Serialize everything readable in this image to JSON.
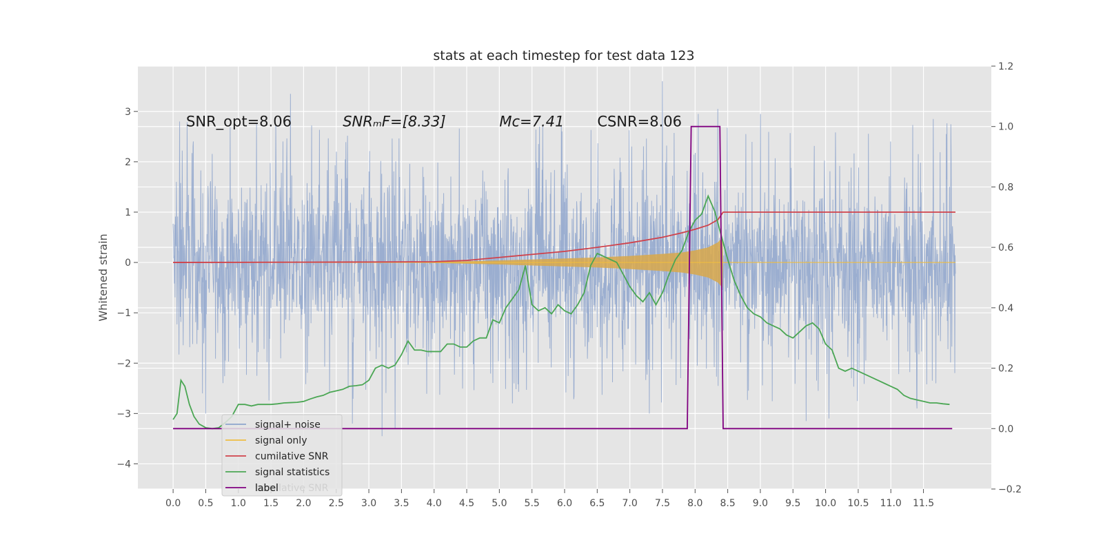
{
  "chart_data": {
    "type": "line",
    "title": "stats at each timestep for test data 123",
    "ylabel": "Whitened strain",
    "xlabel": "",
    "xlim": [
      -0.54,
      12.54
    ],
    "ylim": [
      -4.5,
      3.9
    ],
    "ylim_right": [
      -0.2,
      1.2
    ],
    "x_ticks": [
      0.0,
      0.5,
      1.0,
      1.5,
      2.0,
      2.5,
      3.0,
      3.5,
      4.0,
      4.5,
      5.0,
      5.5,
      6.0,
      6.5,
      7.0,
      7.5,
      8.0,
      8.5,
      9.0,
      9.5,
      10.0,
      10.5,
      11.0,
      11.5
    ],
    "x_tick_labels": [
      "0.0",
      "0.5",
      "1.0",
      "1.5",
      "2.0",
      "2.5",
      "3.0",
      "3.5",
      "4.0",
      "4.5",
      "5.0",
      "5.5",
      "6.0",
      "6.5",
      "7.0",
      "7.5",
      "8.0",
      "8.5",
      "9.0",
      "9.5",
      "10.0",
      "10.5",
      "11.0",
      "11.5"
    ],
    "y_ticks": [
      3,
      2,
      1,
      0,
      -1,
      -2,
      -3,
      -4
    ],
    "y_tick_labels": [
      "3",
      "2",
      "1",
      "0",
      "−1",
      "−2",
      "−3",
      "−4"
    ],
    "y_ticks_right": [
      1.2,
      1.0,
      0.8,
      0.6,
      0.4,
      0.2,
      0.0,
      -0.2
    ],
    "y_tick_labels_right": [
      "1.2",
      "1.0",
      "0.8",
      "0.6",
      "0.4",
      "0.2",
      "0.0",
      "−0.2"
    ],
    "grid": true,
    "legend_position": "lower-left",
    "annotations": [
      {
        "text": "SNR_opt=8.06",
        "x": 0.2,
        "y": 2.8
      },
      {
        "text": "SNRₘF=[8.33]",
        "x": 2.6,
        "y": 2.8
      },
      {
        "text": "Mᴄ=7.41",
        "x": 5.0,
        "y": 2.8
      },
      {
        "text": "CSNR=8.06",
        "x": 6.5,
        "y": 2.8
      }
    ],
    "noise": {
      "x_start": 0.0,
      "x_end": 11.99,
      "base_amplitude": 1.45,
      "spikes": [
        {
          "x": 0.05,
          "y": 1.6
        },
        {
          "x": 0.1,
          "y": 2.8
        },
        {
          "x": 0.45,
          "y": -2.6
        },
        {
          "x": 0.5,
          "y": -3.0
        },
        {
          "x": 1.8,
          "y": 3.35
        },
        {
          "x": 2.75,
          "y": -3.2
        },
        {
          "x": 3.2,
          "y": -3.45
        },
        {
          "x": 3.4,
          "y": -3.3
        },
        {
          "x": 6.0,
          "y": 1.2
        },
        {
          "x": 7.5,
          "y": 3.6
        },
        {
          "x": 7.3,
          "y": -3.0
        },
        {
          "x": 8.05,
          "y": 2.95
        },
        {
          "x": 8.35,
          "y": 3.05
        },
        {
          "x": 9.0,
          "y": 2.95
        },
        {
          "x": 9.7,
          "y": -3.15
        },
        {
          "x": 10.05,
          "y": -3.1
        },
        {
          "x": 11.65,
          "y": 2.85
        },
        {
          "x": 11.4,
          "y": -2.9
        }
      ]
    },
    "signal_envelope": {
      "x": [
        0.0,
        3.0,
        4.0,
        5.0,
        5.5,
        6.0,
        6.5,
        7.0,
        7.5,
        7.8,
        8.0,
        8.2,
        8.35,
        8.42,
        8.43,
        11.99
      ],
      "amp": [
        0.0,
        0.0,
        0.01,
        0.04,
        0.06,
        0.08,
        0.1,
        0.13,
        0.17,
        0.2,
        0.24,
        0.3,
        0.4,
        0.5,
        0.0,
        0.0
      ]
    },
    "series": [
      {
        "name": "signal+ noise",
        "color": "#8ea5cc",
        "axis": "left",
        "style": "noise"
      },
      {
        "name": "signal only",
        "color": "#eebc40",
        "axis": "left",
        "style": "envelope"
      },
      {
        "name": "cumilative SNR",
        "color": "#d0414a",
        "axis": "left",
        "x": [
          0.0,
          1.0,
          2.0,
          3.0,
          4.0,
          4.5,
          5.0,
          5.5,
          6.0,
          6.5,
          7.0,
          7.5,
          7.8,
          8.0,
          8.2,
          8.35,
          8.43,
          8.5,
          11.99
        ],
        "y": [
          0.0,
          0.003,
          0.006,
          0.01,
          0.015,
          0.04,
          0.1,
          0.16,
          0.22,
          0.3,
          0.39,
          0.5,
          0.59,
          0.66,
          0.74,
          0.85,
          1.0,
          1.0,
          1.0
        ]
      },
      {
        "name": "signal statistics",
        "color": "#4aa653",
        "axis": "right",
        "x": [
          0.0,
          0.06,
          0.12,
          0.18,
          0.25,
          0.32,
          0.4,
          0.5,
          0.6,
          0.7,
          0.8,
          0.9,
          1.0,
          1.1,
          1.2,
          1.3,
          1.4,
          1.5,
          1.6,
          1.7,
          1.8,
          1.9,
          2.0,
          2.1,
          2.2,
          2.3,
          2.4,
          2.5,
          2.6,
          2.7,
          2.8,
          2.9,
          3.0,
          3.1,
          3.2,
          3.3,
          3.4,
          3.5,
          3.6,
          3.7,
          3.8,
          3.9,
          4.0,
          4.1,
          4.2,
          4.3,
          4.4,
          4.5,
          4.6,
          4.7,
          4.8,
          4.9,
          5.0,
          5.1,
          5.2,
          5.3,
          5.4,
          5.5,
          5.6,
          5.7,
          5.8,
          5.9,
          6.0,
          6.1,
          6.2,
          6.3,
          6.4,
          6.5,
          6.6,
          6.7,
          6.8,
          6.9,
          7.0,
          7.1,
          7.2,
          7.3,
          7.4,
          7.5,
          7.6,
          7.7,
          7.8,
          7.9,
          8.0,
          8.1,
          8.15,
          8.2,
          8.3,
          8.4,
          8.5,
          8.6,
          8.7,
          8.8,
          8.9,
          9.0,
          9.1,
          9.2,
          9.3,
          9.4,
          9.5,
          9.6,
          9.7,
          9.8,
          9.9,
          10.0,
          10.1,
          10.2,
          10.3,
          10.4,
          10.5,
          10.6,
          10.7,
          10.8,
          10.9,
          11.0,
          11.1,
          11.2,
          11.3,
          11.4,
          11.5,
          11.6,
          11.7,
          11.8,
          11.9
        ],
        "y": [
          0.03,
          0.05,
          0.16,
          0.14,
          0.08,
          0.04,
          0.015,
          0.003,
          0.0,
          0.003,
          0.02,
          0.04,
          0.08,
          0.08,
          0.075,
          0.08,
          0.08,
          0.08,
          0.082,
          0.085,
          0.086,
          0.087,
          0.09,
          0.098,
          0.105,
          0.11,
          0.12,
          0.125,
          0.13,
          0.14,
          0.142,
          0.145,
          0.16,
          0.2,
          0.21,
          0.2,
          0.21,
          0.245,
          0.29,
          0.26,
          0.26,
          0.255,
          0.255,
          0.255,
          0.28,
          0.28,
          0.27,
          0.27,
          0.29,
          0.3,
          0.3,
          0.36,
          0.35,
          0.4,
          0.43,
          0.46,
          0.54,
          0.41,
          0.39,
          0.4,
          0.38,
          0.41,
          0.39,
          0.38,
          0.41,
          0.45,
          0.54,
          0.58,
          0.57,
          0.56,
          0.55,
          0.51,
          0.47,
          0.44,
          0.42,
          0.45,
          0.41,
          0.45,
          0.51,
          0.56,
          0.59,
          0.65,
          0.69,
          0.71,
          0.74,
          0.77,
          0.72,
          0.64,
          0.56,
          0.49,
          0.44,
          0.4,
          0.38,
          0.37,
          0.35,
          0.34,
          0.33,
          0.31,
          0.3,
          0.32,
          0.34,
          0.35,
          0.33,
          0.28,
          0.26,
          0.2,
          0.19,
          0.2,
          0.19,
          0.18,
          0.17,
          0.16,
          0.15,
          0.14,
          0.13,
          0.11,
          0.1,
          0.095,
          0.09,
          0.085,
          0.085,
          0.082,
          0.08
        ]
      },
      {
        "name": "label",
        "color": "#800080",
        "axis": "right",
        "x": [
          0.0,
          7.88,
          7.94,
          8.38,
          8.43,
          11.94
        ],
        "y": [
          0.0,
          0.0,
          1.0,
          1.0,
          0.0,
          0.0
        ]
      }
    ],
    "legend_overlay_text": "cumilative SNR"
  }
}
